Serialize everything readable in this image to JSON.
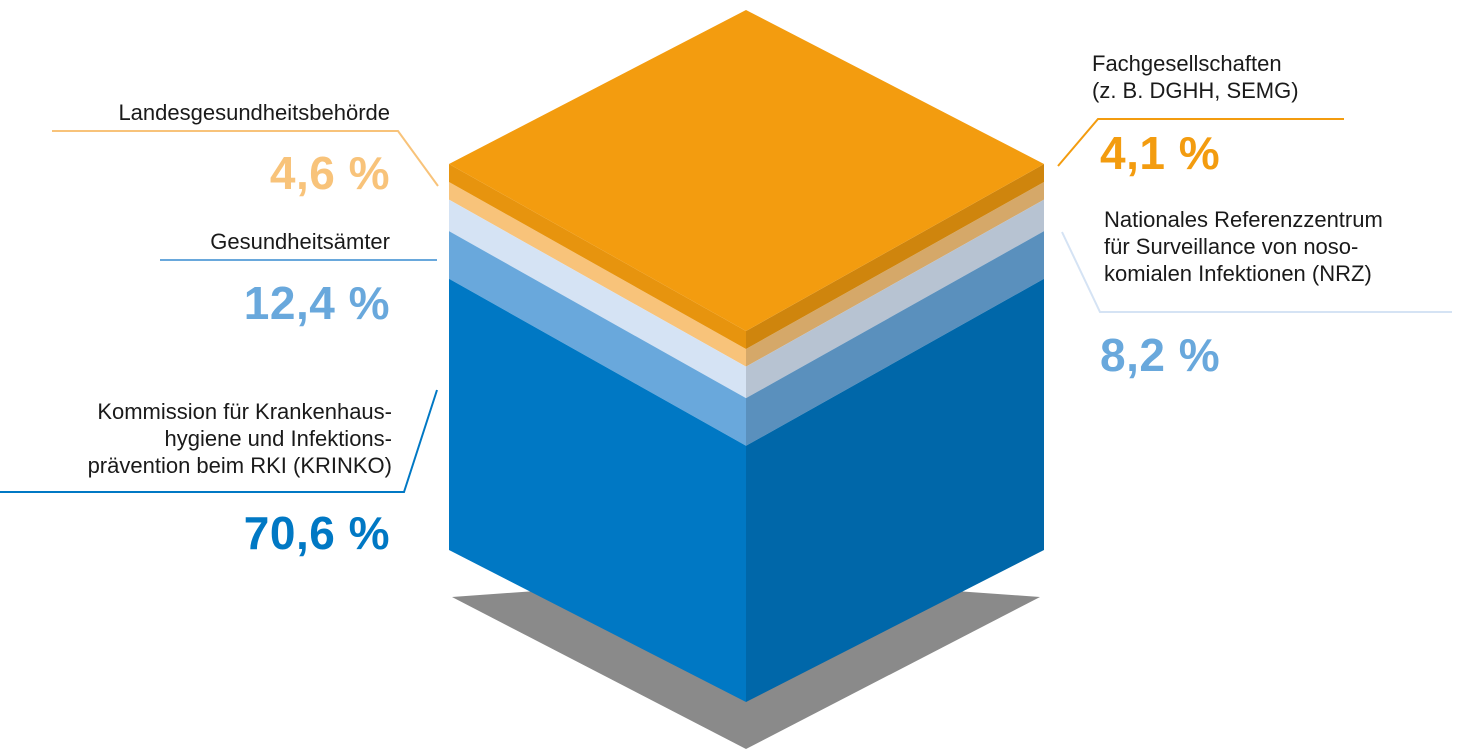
{
  "chart_data": {
    "type": "stacked-cube",
    "unit": "%",
    "colors": {
      "orange": "#f39c0f",
      "peach": "#f8c37a",
      "lightblue": "#d5e3f4",
      "midblue": "#69a8dc",
      "blue": "#0078c4"
    },
    "segments": [
      {
        "name": "Kommission für Krankenhaushygiene und Infektionsprävention beim RKI (KRINKO)",
        "label_lines": [
          "Kommission für Krankenhaus-",
          "hygiene und Infektions-",
          "prävention beim RKI (KRINKO)"
        ],
        "value": 70.6,
        "value_text": "70,6 %",
        "color": "#0078c4"
      },
      {
        "name": "Gesundheitsämter",
        "label_lines": [
          "Gesundheitsämter"
        ],
        "value": 12.4,
        "value_text": "12,4 %",
        "color": "#69a8dc"
      },
      {
        "name": "Nationales Referenzzentrum für Surveillance von nosokomialen Infektionen (NRZ)",
        "label_lines": [
          "Nationales Referenzzentrum",
          "für Surveillance von noso-",
          "komialen Infektionen (NRZ)"
        ],
        "value": 8.2,
        "value_text": "8,2 %",
        "color": "#d5e3f4"
      },
      {
        "name": "Landesgesundheitsbehörde",
        "label_lines": [
          "Landesgesundheitsbehörde"
        ],
        "value": 4.6,
        "value_text": "4,6 %",
        "color": "#f8c37a"
      },
      {
        "name": "Fachgesellschaften (z. B. DGHH, SEMG)",
        "label_lines": [
          "Fachgesellschaften",
          "(z. B. DGHH, SEMG)"
        ],
        "value": 4.1,
        "value_text": "4,1 %",
        "color": "#f39c0f"
      }
    ]
  }
}
